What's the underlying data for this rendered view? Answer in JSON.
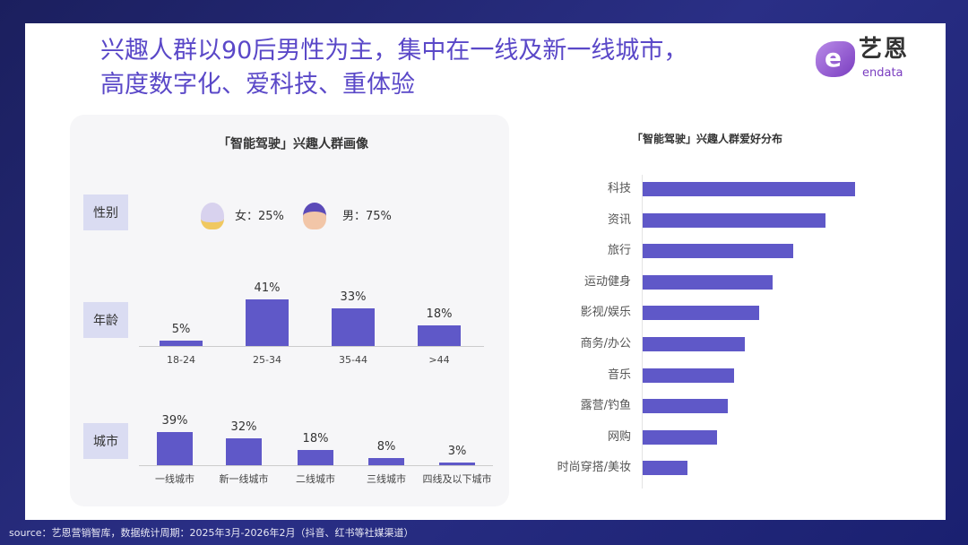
{
  "title_lines": [
    "兴趣人群以90后男性为主，集中在一线及新一线城市，",
    "高度数字化、爱科技、重体验"
  ],
  "logo": {
    "cn": "艺恩",
    "en": "endata",
    "brand_color": "#7a3dc0"
  },
  "left_panel": {
    "title": "「智能驾驶」兴趣人群画像",
    "gender": {
      "label": "性别",
      "female": "女：25%",
      "male": "男：75%",
      "female_value": 25,
      "male_value": 75
    },
    "age": {
      "label": "年龄",
      "categories": [
        "18-24",
        "25-34",
        "35-44",
        ">44"
      ],
      "values": [
        5,
        41,
        33,
        18
      ],
      "value_labels": [
        "5%",
        "41%",
        "33%",
        "18%"
      ]
    },
    "city": {
      "label": "城市",
      "categories": [
        "一线城市",
        "新一线城市",
        "二线城市",
        "三线城市",
        "四线及以下城市"
      ],
      "values": [
        39,
        32,
        18,
        8,
        3
      ],
      "value_labels": [
        "39%",
        "32%",
        "18%",
        "8%",
        "3%"
      ]
    }
  },
  "chart_data": [
    {
      "type": "bar",
      "title": "",
      "categories": [
        "18-24",
        "25-34",
        "35-44",
        ">44"
      ],
      "values": [
        5,
        41,
        33,
        18
      ],
      "unit": "%"
    },
    {
      "type": "bar",
      "title": "",
      "categories": [
        "一线城市",
        "新一线城市",
        "二线城市",
        "三线城市",
        "四线及以下城市"
      ],
      "values": [
        39,
        32,
        18,
        8,
        3
      ],
      "unit": "%"
    },
    {
      "type": "bar",
      "orientation": "horizontal",
      "title": "「智能驾驶」兴趣人群爱好分布",
      "categories": [
        "科技",
        "资讯",
        "旅行",
        "运动健身",
        "影视/娱乐",
        "商务/办公",
        "音乐",
        "露营/钓鱼",
        "网购",
        "时尚穿搭/美妆"
      ],
      "values": [
        100,
        86,
        71,
        61,
        55,
        48,
        43,
        40,
        35,
        21
      ],
      "value_note": "relative",
      "bar_color": "#5f58c8"
    }
  ],
  "source": "source：艺恩营销智库，数据统计周期：2025年3月-2026年2月（抖音、红书等社媒渠道）"
}
